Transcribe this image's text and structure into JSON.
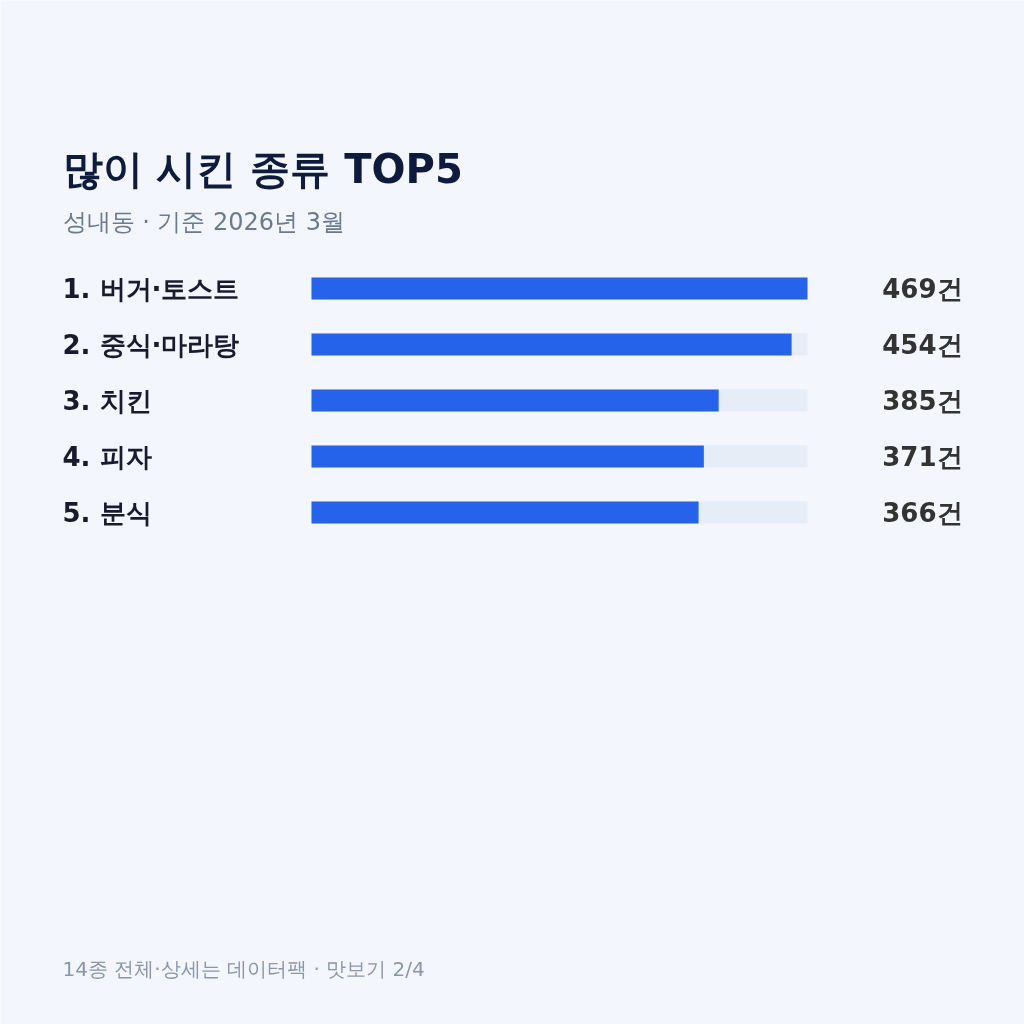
{
  "chart_data": {
    "type": "bar",
    "orientation": "horizontal",
    "title": "많이 시킨 종류 TOP5",
    "subtitle": "성내동 · 기준 2026년 3월",
    "categories": [
      "1. 버거·토스트",
      "2. 중식·마라탕",
      "3. 치킨",
      "4. 피자",
      "5. 분식"
    ],
    "values": [
      469,
      454,
      385,
      371,
      366
    ],
    "color": "#2563eb",
    "value_labels": [
      "469건",
      "454건",
      "385건",
      "371건",
      "366건"
    ],
    "annotations": [
      "14종 전체·상세는 데이터팩 · 맛보기 2/4"
    ]
  }
}
